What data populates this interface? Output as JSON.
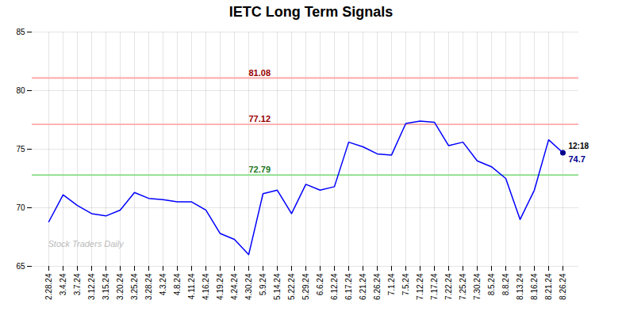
{
  "chart_data": {
    "type": "line",
    "title": "IETC Long Term Signals",
    "categories": [
      "2.28.24",
      "3.4.24",
      "3.7.24",
      "3.12.24",
      "3.15.24",
      "3.20.24",
      "3.25.24",
      "3.28.24",
      "4.3.24",
      "4.8.24",
      "4.11.24",
      "4.16.24",
      "4.19.24",
      "4.24.24",
      "4.30.24",
      "5.9.24",
      "5.14.24",
      "5.22.24",
      "5.29.24",
      "6.6.24",
      "6.12.24",
      "6.17.24",
      "6.21.24",
      "6.26.24",
      "7.1.24",
      "7.5.24",
      "7.12.24",
      "7.17.24",
      "7.22.24",
      "7.25.24",
      "7.30.24",
      "8.5.24",
      "8.8.24",
      "8.13.24",
      "8.16.24",
      "8.21.24",
      "8.26.24"
    ],
    "values": [
      68.8,
      71.1,
      70.2,
      69.5,
      69.3,
      69.8,
      71.3,
      70.8,
      70.7,
      70.5,
      70.5,
      69.8,
      67.8,
      67.3,
      66.0,
      71.2,
      71.5,
      69.5,
      72.0,
      71.5,
      71.8,
      75.6,
      75.2,
      74.6,
      74.5,
      77.2,
      77.4,
      77.3,
      75.3,
      75.6,
      74.0,
      73.5,
      72.5,
      69.0,
      71.5,
      75.8,
      74.7
    ],
    "color": "blue",
    "ylim": [
      65,
      85
    ],
    "yticks": [
      65,
      70,
      75,
      80,
      85
    ],
    "grid": true,
    "hlines": [
      {
        "value": 81.08,
        "label": "81.08",
        "color": "#ffaaaa"
      },
      {
        "value": 77.12,
        "label": "77.12",
        "color": "#ffaaaa"
      },
      {
        "value": 72.79,
        "label": "72.79",
        "color": "#88dd88"
      }
    ],
    "annotations": [
      {
        "text": "12:18",
        "color": "black"
      },
      {
        "text": "74.7",
        "color": "darkblue"
      }
    ],
    "watermark": "Stock Traders Daily"
  }
}
